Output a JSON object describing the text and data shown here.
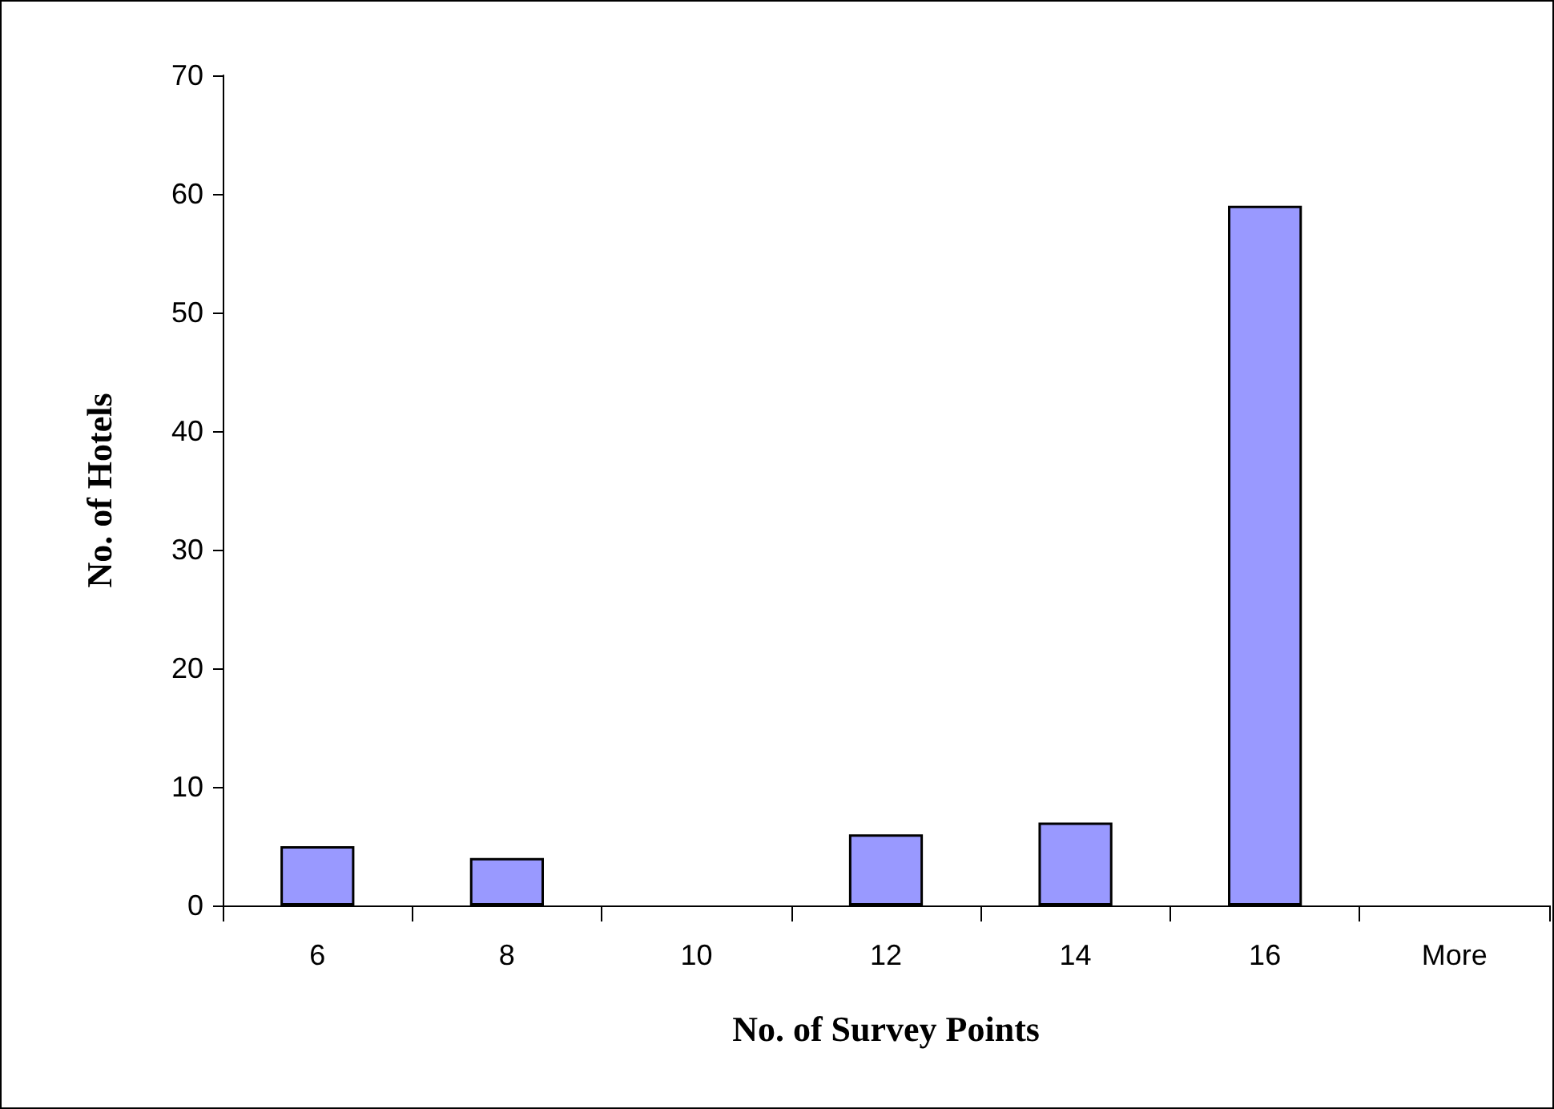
{
  "chart_data": {
    "type": "bar",
    "xlabel": "No. of Survey Points",
    "ylabel": "No. of Hotels",
    "categories": [
      "6",
      "8",
      "10",
      "12",
      "14",
      "16",
      "More"
    ],
    "values": [
      5,
      4,
      0,
      6,
      7,
      59,
      0
    ],
    "color": "#9999ff",
    "ylim": [
      0,
      70
    ],
    "yticks": [
      0,
      10,
      20,
      30,
      40,
      50,
      60,
      70
    ],
    "grid": false
  }
}
